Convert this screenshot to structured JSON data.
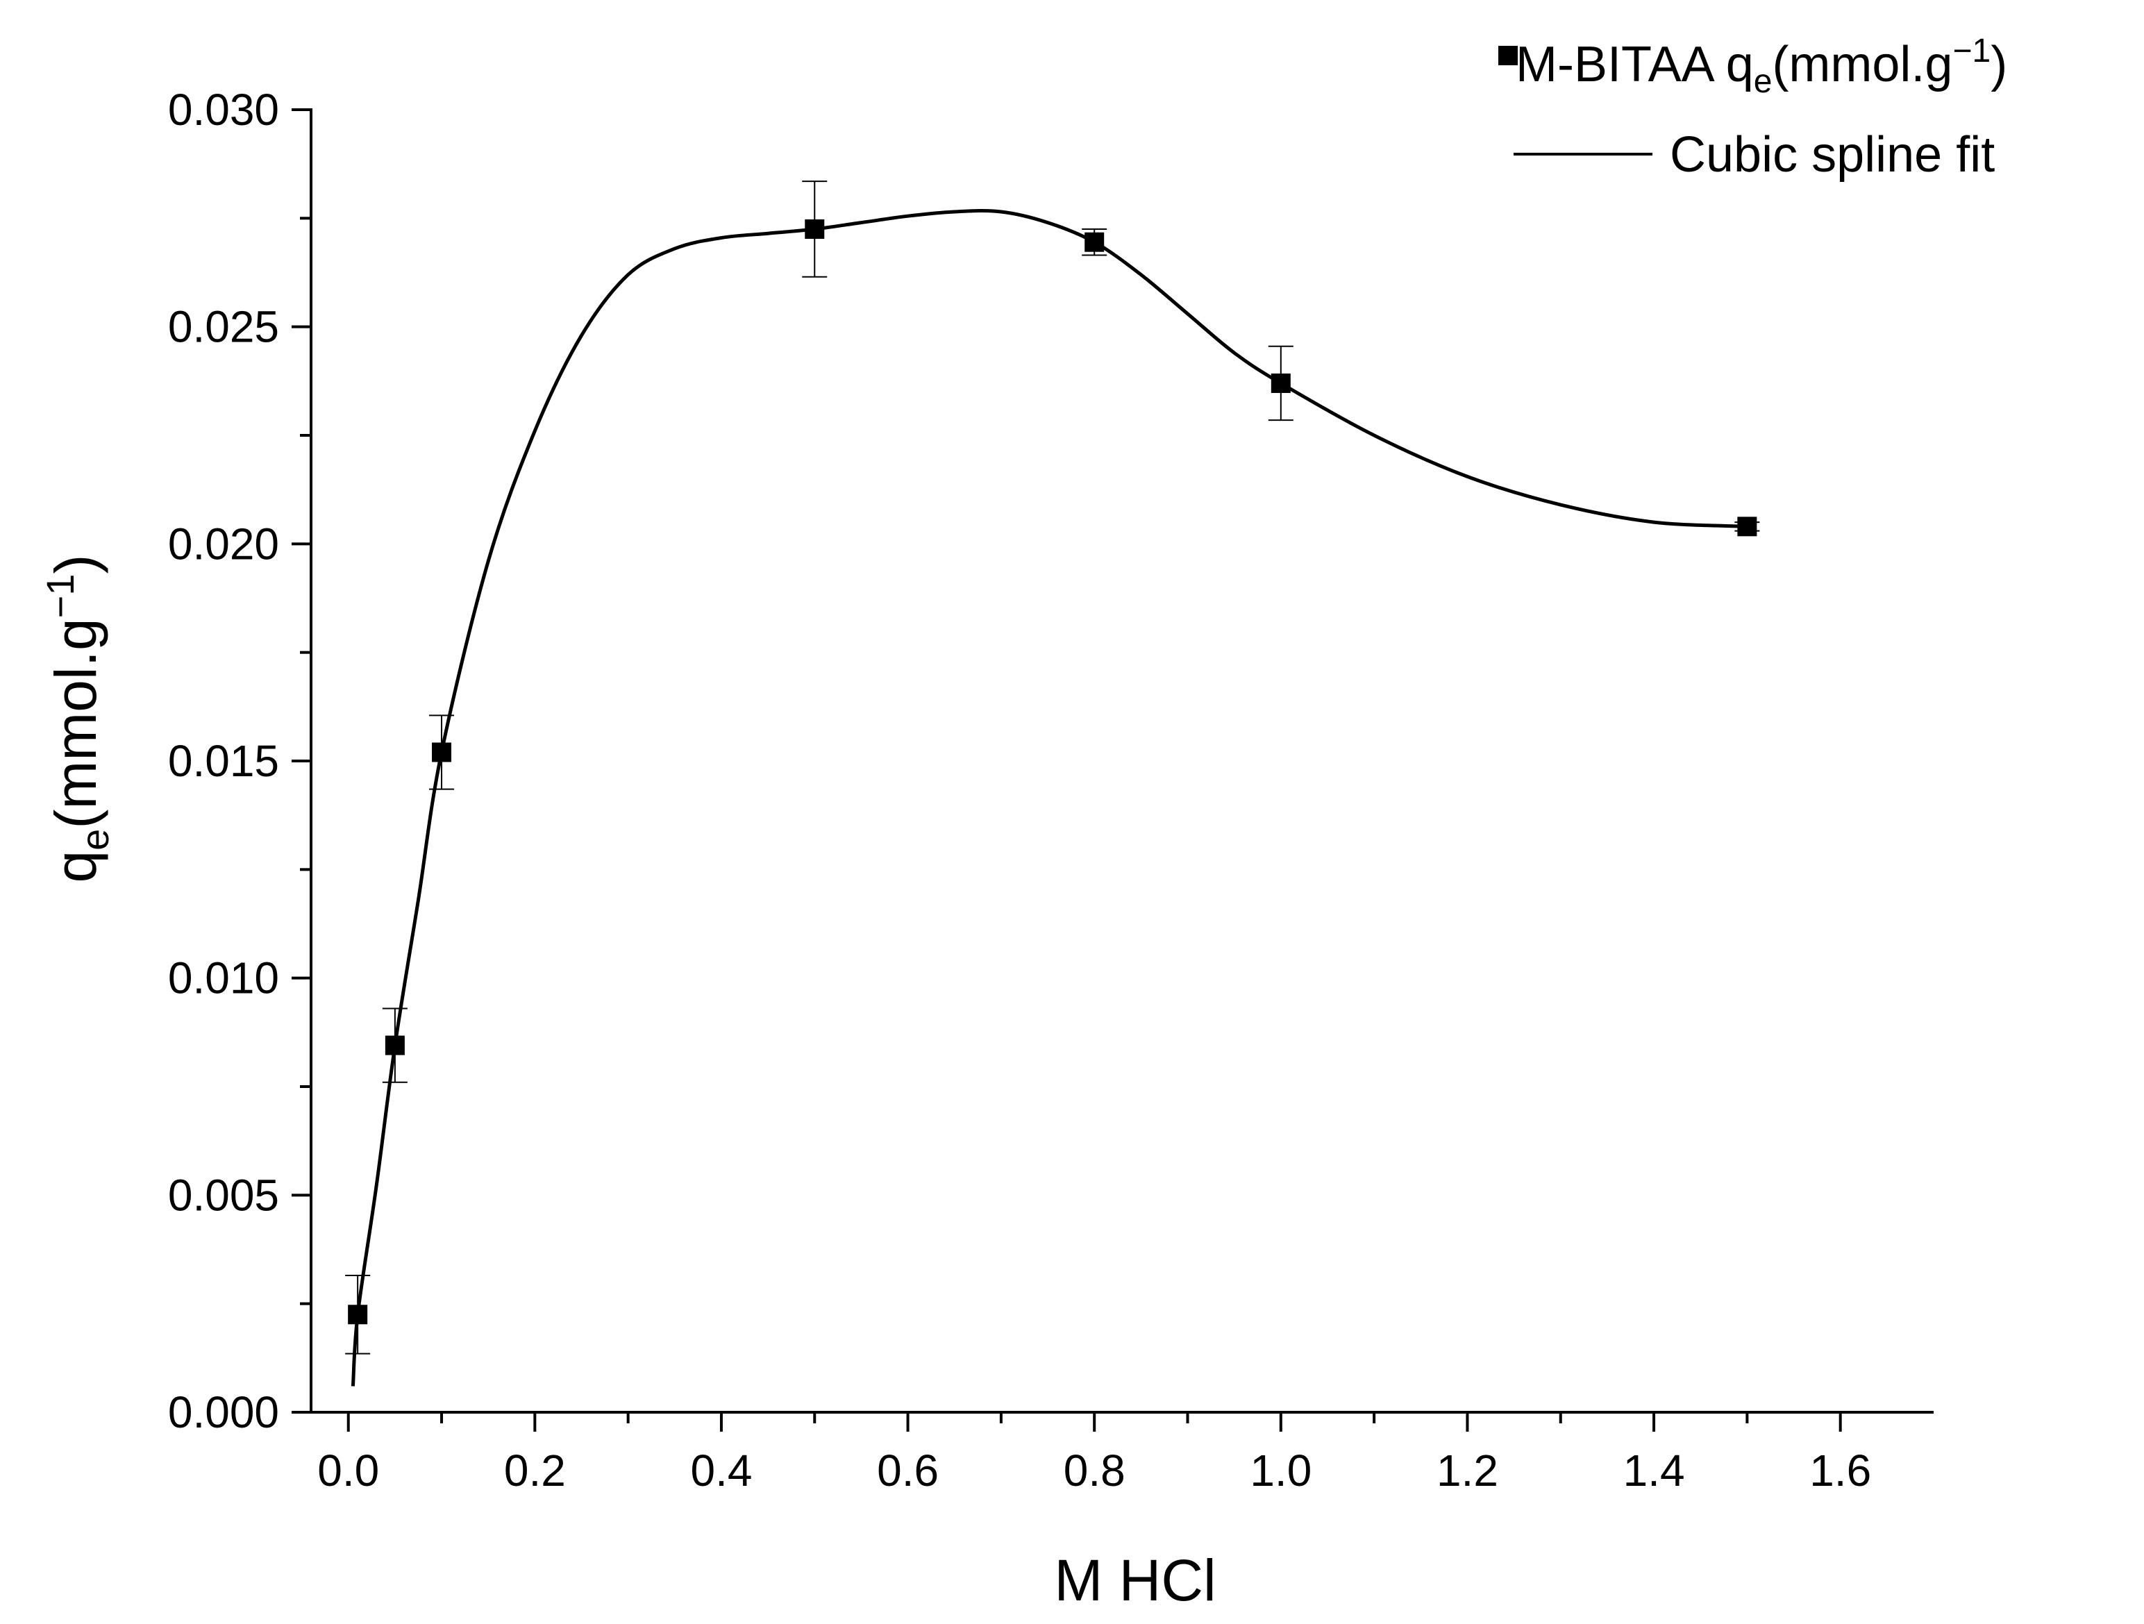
{
  "chart_data": {
    "type": "scatter",
    "xlabel": "M HCl",
    "ylabel": {
      "base": "q",
      "sub": "e",
      "rest": "(mmol.g",
      "sup": "−1",
      "close": ")"
    },
    "xlim": [
      -0.04,
      1.7
    ],
    "ylim": [
      0.0,
      0.03
    ],
    "x_ticks": [
      0.0,
      0.2,
      0.4,
      0.6,
      0.8,
      1.0,
      1.2,
      1.4,
      1.6
    ],
    "x_tick_labels": [
      "0.0",
      "0.2",
      "0.4",
      "0.6",
      "0.8",
      "1.0",
      "1.2",
      "1.4",
      "1.6"
    ],
    "y_ticks": [
      0.0,
      0.005,
      0.01,
      0.015,
      0.02,
      0.025,
      0.03
    ],
    "y_tick_labels": [
      "0.000",
      "0.005",
      "0.010",
      "0.015",
      "0.020",
      "0.025",
      "0.030"
    ],
    "grid": false,
    "legend_position": "top-right",
    "legend": [
      {
        "kind": "marker",
        "label": {
          "base": "M-BITAA q",
          "sub": "e",
          "rest": "(mmol.g",
          "sup": "−1",
          "close": ")"
        }
      },
      {
        "kind": "line",
        "label": {
          "base": "Cubic spline fit"
        }
      }
    ],
    "series": [
      {
        "type": "scatter",
        "marker": "square",
        "x": [
          0.01,
          0.05,
          0.1,
          0.5,
          0.8,
          1.0,
          1.5
        ],
        "y": [
          0.00225,
          0.00845,
          0.0152,
          0.02725,
          0.02695,
          0.0237,
          0.0204
        ],
        "yerr": [
          0.0009,
          0.00085,
          0.00085,
          0.0011,
          0.0003,
          0.00085,
          0.0001
        ]
      },
      {
        "type": "line",
        "x": [
          0.005,
          0.01,
          0.03,
          0.05,
          0.075,
          0.1,
          0.15,
          0.2,
          0.25,
          0.3,
          0.35,
          0.4,
          0.45,
          0.5,
          0.55,
          0.6,
          0.65,
          0.7,
          0.75,
          0.8,
          0.85,
          0.9,
          0.95,
          1.0,
          1.1,
          1.2,
          1.3,
          1.4,
          1.5
        ],
        "y": [
          0.0006,
          0.00225,
          0.0052,
          0.00845,
          0.0118,
          0.0152,
          0.0196,
          0.0226,
          0.0248,
          0.0262,
          0.0268,
          0.02705,
          0.02715,
          0.02725,
          0.0274,
          0.02755,
          0.02765,
          0.02765,
          0.0274,
          0.02695,
          0.0262,
          0.0253,
          0.0244,
          0.0237,
          0.0225,
          0.02155,
          0.0209,
          0.0205,
          0.0204
        ]
      }
    ]
  }
}
